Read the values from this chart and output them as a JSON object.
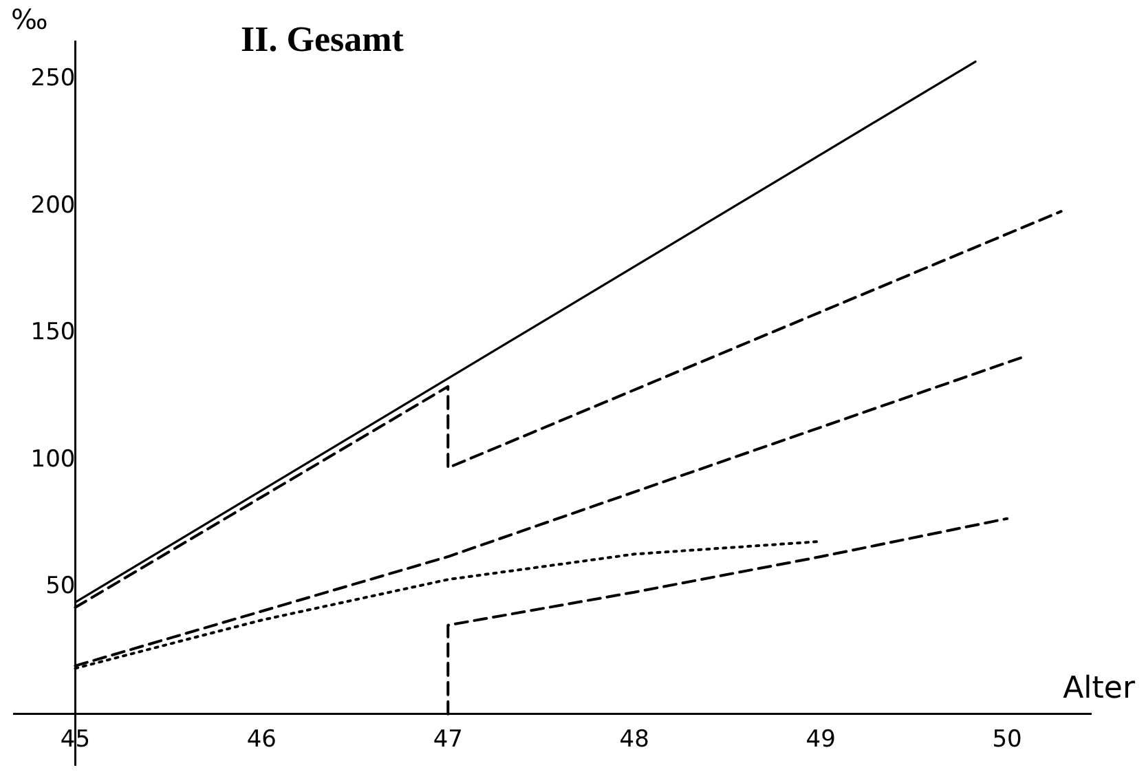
{
  "chart_data": {
    "type": "line",
    "title": "II. Gesamt",
    "xlabel": "Alter",
    "ylabel": "‰",
    "xlim": [
      44.67,
      50.45
    ],
    "xticks": [
      45,
      46,
      47,
      48,
      49,
      50
    ],
    "ylim": [
      -20,
      265
    ],
    "yticks": [
      50,
      100,
      150,
      200,
      250
    ],
    "grid": false,
    "marker": "none",
    "series": [
      {
        "color": "#000000",
        "line_style": "solid",
        "x": [
          45,
          49.83
        ],
        "values": [
          44,
          257
        ]
      },
      {
        "color": "#000000",
        "line_style": "dashed",
        "x": [
          45,
          47,
          47,
          50.29
        ],
        "values": [
          42,
          129,
          97,
          198
        ]
      },
      {
        "color": "#000000",
        "line_style": "dashed",
        "x": [
          45,
          47,
          50.1
        ],
        "values": [
          19,
          62,
          141
        ]
      },
      {
        "color": "#000000",
        "line_style": "dotted",
        "x": [
          45,
          46,
          47,
          48,
          49
        ],
        "values": [
          18,
          37,
          53,
          63,
          68
        ]
      },
      {
        "color": "#000000",
        "line_style": "dashed",
        "x": [
          47,
          47,
          48,
          49,
          50
        ],
        "values": [
          0,
          35,
          48,
          62,
          77
        ]
      }
    ]
  }
}
